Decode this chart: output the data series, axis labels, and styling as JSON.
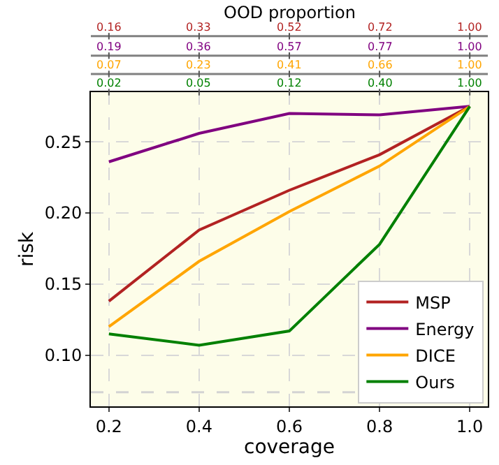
{
  "chart_data": {
    "type": "line",
    "xlabel": "coverage",
    "ylabel": "risk",
    "x": [
      0.2,
      0.4,
      0.6,
      0.8,
      1.0
    ],
    "series": [
      {
        "name": "MSP",
        "color": "#b22222",
        "values": [
          0.138,
          0.188,
          0.216,
          0.241,
          0.275
        ]
      },
      {
        "name": "Energy",
        "color": "#800080",
        "values": [
          0.236,
          0.256,
          0.27,
          0.269,
          0.275
        ]
      },
      {
        "name": "DICE",
        "color": "#ffa500",
        "values": [
          0.12,
          0.166,
          0.201,
          0.233,
          0.275
        ]
      },
      {
        "name": "Ours",
        "color": "#008000",
        "values": [
          0.115,
          0.107,
          0.117,
          0.178,
          0.275
        ]
      }
    ],
    "xlim": [
      0.16,
      1.04
    ],
    "ylim": [
      0.064,
      0.285
    ],
    "xticks": [
      {
        "value": 0.2,
        "label": "0.2"
      },
      {
        "value": 0.4,
        "label": "0.4"
      },
      {
        "value": 0.6,
        "label": "0.6"
      },
      {
        "value": 0.8,
        "label": "0.8"
      },
      {
        "value": 1.0,
        "label": "1.0"
      }
    ],
    "yticks": [
      {
        "value": 0.1,
        "label": "0.10"
      },
      {
        "value": 0.15,
        "label": "0.15"
      },
      {
        "value": 0.2,
        "label": "0.20"
      },
      {
        "value": 0.25,
        "label": "0.25"
      }
    ],
    "annotations": [
      "OOD proportion",
      "0.16",
      "0.33",
      "0.52",
      "0.72",
      "1.00",
      "0.19",
      "0.36",
      "0.57",
      "0.77",
      "1.00",
      "0.07",
      "0.23",
      "0.41",
      "0.66",
      "1.00",
      "0.02",
      "0.05",
      "0.12",
      "0.40",
      "1.00"
    ],
    "ref_lines": [
      {
        "axis": "y",
        "value": 0.074,
        "label": null,
        "color": "#d3d3d3",
        "line_style": "dashed"
      }
    ],
    "grid": true,
    "legend": "bottom right",
    "line_style": "solid",
    "marker": "none"
  }
}
